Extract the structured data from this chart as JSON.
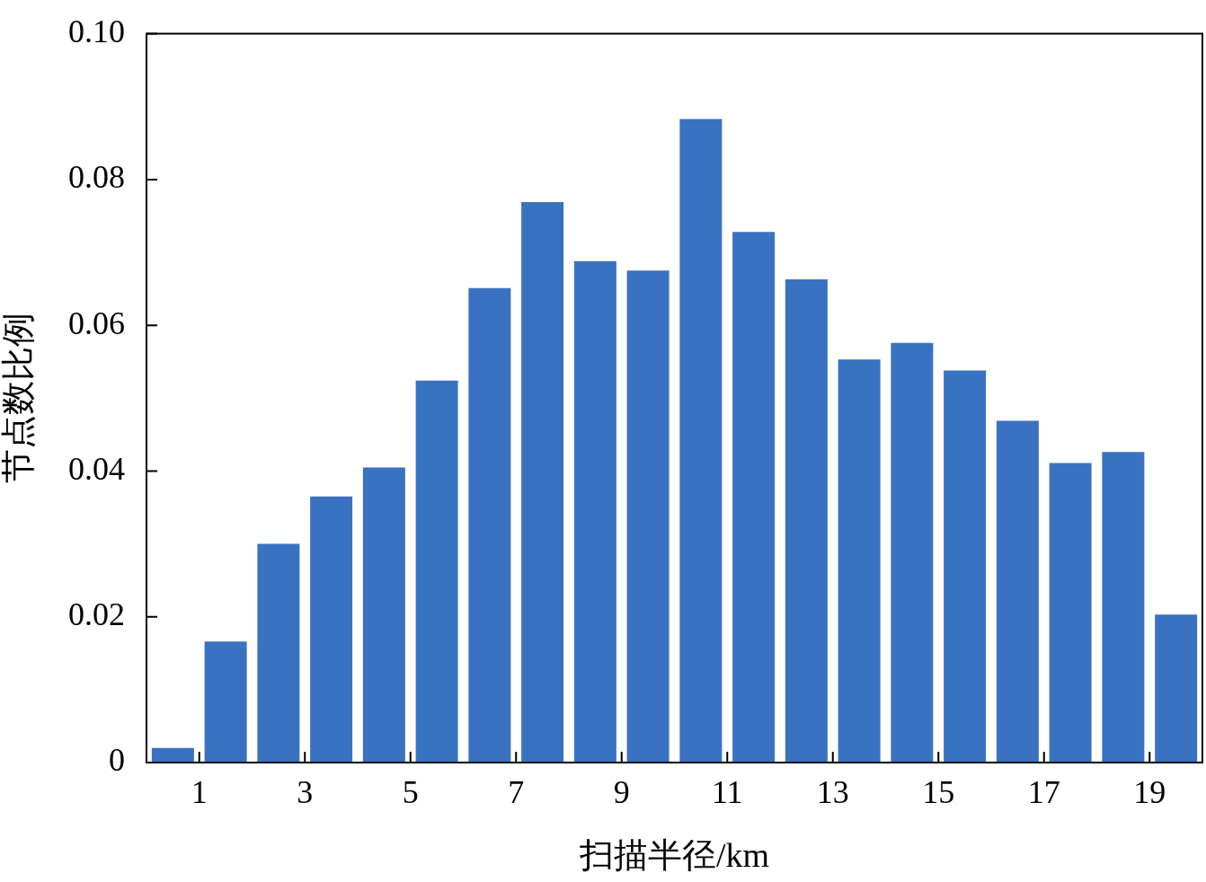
{
  "chart_data": {
    "type": "histogram",
    "xlabel": "扫描半径/km",
    "ylabel": "节点数比例",
    "bins": [
      0,
      1,
      2,
      3,
      4,
      5,
      6,
      7,
      8,
      9,
      10,
      11,
      12,
      13,
      14,
      15,
      16,
      17,
      18,
      19,
      20
    ],
    "values": [
      0.002,
      0.0166,
      0.03,
      0.0365,
      0.0405,
      0.0524,
      0.0651,
      0.0769,
      0.0688,
      0.0675,
      0.0883,
      0.0728,
      0.0663,
      0.0553,
      0.0576,
      0.0538,
      0.0469,
      0.0411,
      0.0426,
      0.0203
    ],
    "color": "#3a72c2",
    "xlim": [
      0,
      20
    ],
    "xticks": [
      1,
      3,
      5,
      7,
      9,
      11,
      13,
      15,
      17,
      19
    ],
    "ylim": [
      0,
      0.1
    ],
    "yticks": [
      0,
      0.02,
      0.04,
      0.06,
      0.08,
      {
        "value": 0.1,
        "label": "0.10"
      }
    ],
    "grid": false,
    "legend": false
  }
}
